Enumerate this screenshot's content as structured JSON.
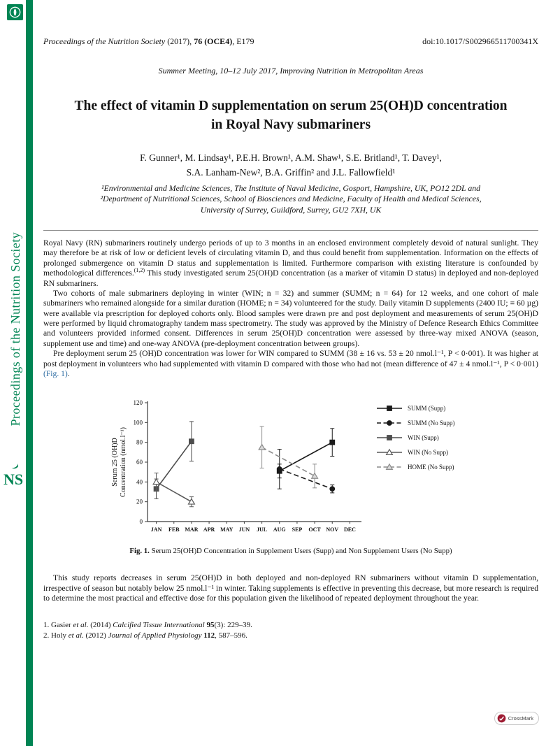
{
  "colors": {
    "accent_green": "#008453",
    "link_blue": "#2d6ca2",
    "crossmark_red": "#9e1b32"
  },
  "sidebar": {
    "vertical_title": "Proceedings of the Nutrition Society",
    "ns_logo_text": "NS"
  },
  "header": {
    "journal_italic": "Proceedings of the Nutrition Society",
    "cite_mid": " (2017), ",
    "volume_bold": "76 (OCE4)",
    "cite_end": ", E179",
    "doi": "doi:10.1017/S002966511700341X",
    "meeting": "Summer Meeting, 10–12 July 2017, Improving Nutrition in Metropolitan Areas"
  },
  "article": {
    "title_line1": "The effect of vitamin D supplementation on serum 25(OH)D concentration",
    "title_line2": "in Royal Navy submariners",
    "authors_line1": "F. Gunner¹, M. Lindsay¹, P.E.H. Brown¹, A.M. Shaw¹, S.E. Britland¹, T. Davey¹,",
    "authors_line2": "S.A. Lanham-New², B.A. Griffin² and J.L. Fallowfield¹",
    "affiliation_line1": "¹Environmental and Medicine Sciences, The Institute of Naval Medicine, Gosport, Hampshire, UK, PO12 2DL and",
    "affiliation_line2": "²Department of Nutritional Sciences, School of Biosciences and Medicine, Faculty of Health and Medical Sciences,",
    "affiliation_line3": "University of Surrey, Guildford, Surrey, GU2 7XH, UK"
  },
  "abstract": {
    "p1_a": "Royal Navy (RN) submariners routinely undergo periods of up to 3 months in an enclosed environment completely devoid of natural sunlight. They may therefore be at risk of low or deficient levels of circulating vitamin D, and thus could benefit from supplementation. Information on the effects of prolonged submergence on vitamin D status and supplementation is limited. Furthermore comparison with existing literature is confounded by methodological differences.",
    "p1_ref": "(1,2)",
    "p1_b": " This study investigated serum 25(OH)D concentration (as a marker of vitamin D status) in deployed and non-deployed RN submariners.",
    "p2": "Two cohorts of male submariners deploying in winter (WIN; n = 32) and summer (SUMM; n = 64) for 12 weeks, and one cohort of male submariners who remained alongside for a similar duration (HOME; n = 34) volunteered for the study. Daily vitamin D supplements (2400 IU; ≡ 60 µg) were available via prescription for deployed cohorts only. Blood samples were drawn pre and post deployment and measurements of serum 25(OH)D were performed by liquid chromatography tandem mass spectrometry. The study was approved by the Ministry of Defence Research Ethics Committee and volunteers provided informed consent. Differences in serum 25(OH)D concentration were assessed by three-way mixed ANOVA (season, supplement use and time) and one-way ANOVA (pre-deployment concentration between groups).",
    "p3_a": "Pre deployment serum 25 (OH)D concentration was lower for WIN compared to SUMM (38 ± 16 vs. 53 ± 20 nmol.l⁻¹, P < 0·001). It was higher at post deployment in volunteers who had supplemented with vitamin D compared with those who had not (mean difference of 47 ± 4 nmol.l⁻¹, P < 0·001) ",
    "p3_link": "(Fig. 1)",
    "p3_b": "."
  },
  "figure": {
    "caption_label": "Fig. 1.",
    "caption_text": "Serum 25(OH)D Concentration in Supplement Users (Supp) and Non Supplement Users (No Supp)"
  },
  "discussion": "This study reports decreases in serum 25(OH)D in both deployed and non-deployed RN submariners without vitamin D supplementation, irrespective of season but notably below 25 nmol.l⁻¹ in winter. Taking supplements is effective in preventing this decrease, but more research is required to determine the most practical and effective dose for this population given the likelihood of repeated deployment throughout the year.",
  "references": [
    {
      "pre": "1. Gasier ",
      "etal": "et al.",
      "year": " (2014) ",
      "journal": "Calcified Tissue International ",
      "volume": "95",
      "tail": "(3): 229–39."
    },
    {
      "pre": "2. Holy ",
      "etal": "et al.",
      "year": " (2012) ",
      "journal": "Journal of Applied Physiology ",
      "volume": "112",
      "tail": ", 587–596."
    }
  ],
  "crossmark": {
    "label": "CrossMark"
  },
  "chart_data": {
    "type": "line",
    "title": "",
    "xlabel": "",
    "ylabel_lines": [
      "Serum 25 (OH)D",
      "Concentration (nmol.l⁻¹)"
    ],
    "categories": [
      "JAN",
      "FEB",
      "MAR",
      "APR",
      "MAY",
      "JUN",
      "JUL",
      "AUG",
      "SEP",
      "OCT",
      "NOV",
      "DEC"
    ],
    "ylim": [
      0,
      120
    ],
    "ytick": 20,
    "grid": false,
    "legend_position": "right",
    "series": [
      {
        "name": "SUMM (Supp)",
        "line": "solid",
        "marker": "square",
        "color": "#1a1a1a",
        "fill": "#1a1a1a",
        "points": [
          {
            "x": "AUG",
            "y": 51,
            "err": 7
          },
          {
            "x": "NOV",
            "y": 80,
            "err": 14
          }
        ]
      },
      {
        "name": "SUMM (No Supp)",
        "line": "dashed",
        "marker": "circle",
        "color": "#1a1a1a",
        "fill": "#1a1a1a",
        "points": [
          {
            "x": "AUG",
            "y": 53,
            "err": 20
          },
          {
            "x": "NOV",
            "y": 33,
            "err": 4
          }
        ]
      },
      {
        "name": "WIN (Supp)",
        "line": "solid",
        "marker": "square",
        "color": "#4d4d4d",
        "fill": "#4d4d4d",
        "points": [
          {
            "x": "JAN",
            "y": 33,
            "err": 10
          },
          {
            "x": "MAR",
            "y": 81,
            "err": 20
          }
        ]
      },
      {
        "name": "WIN (No Supp)",
        "line": "solid",
        "marker": "triangle",
        "color": "#595959",
        "fill": "#ffffff",
        "points": [
          {
            "x": "JAN",
            "y": 40,
            "err": 9
          },
          {
            "x": "MAR",
            "y": 20,
            "err": 5
          }
        ]
      },
      {
        "name": "HOME (No Supp)",
        "line": "dashed",
        "marker": "triangle",
        "color": "#8c8c8c",
        "fill": "#d9d9d9",
        "points": [
          {
            "x": "JUL",
            "y": 75,
            "err": 21
          },
          {
            "x": "OCT",
            "y": 46,
            "err": 12
          }
        ]
      }
    ]
  }
}
